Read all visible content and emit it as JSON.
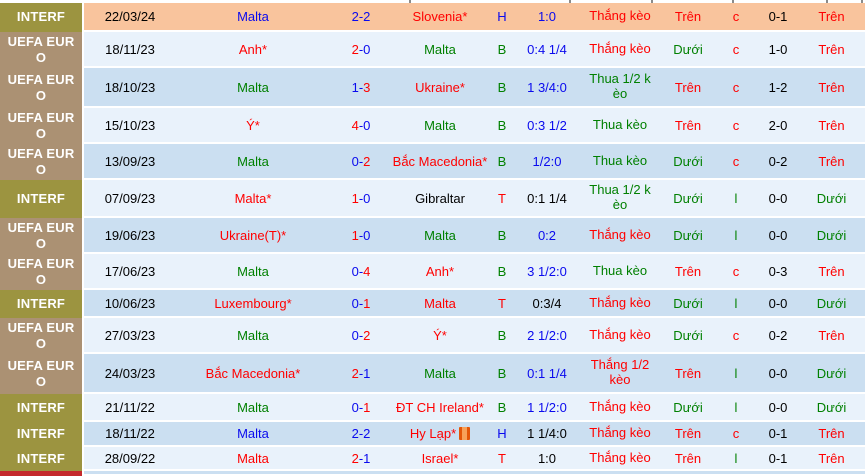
{
  "colors": {
    "red": "#ff0000",
    "green": "#008000",
    "blue": "#0a0aee",
    "black": "#000000",
    "comp_text": "#ffffff",
    "comp_interf_bg": "#9c9440",
    "comp_uefa_bg": "#ab9173",
    "comp_qual_bg": "#c4292c",
    "row_highlight_bg": "#f9c49d",
    "row_light_bg": "#e9f2fb",
    "row_dark_bg": "#cbdff1",
    "card_icon_color": "#e35507"
  },
  "score_separator": "-",
  "rows": [
    {
      "comp": "INTERF",
      "comp_style": "interf",
      "date": "22/03/24",
      "highlight": true,
      "home": {
        "name": "Malta",
        "color": "blue"
      },
      "score": {
        "h": "2",
        "hc": "blue",
        "a": "2",
        "ac": "blue"
      },
      "away": {
        "name": "Slovenia*",
        "color": "red",
        "card": false
      },
      "hbt": {
        "t": "H",
        "c": "blue"
      },
      "handicap": {
        "t": "1:0",
        "c": "blue"
      },
      "result": {
        "t": "Thắng kèo",
        "c": "red"
      },
      "ou": {
        "t": "Trên",
        "c": "red"
      },
      "oe": {
        "t": "c",
        "c": "red"
      },
      "ht": "0-1",
      "ht_ou": {
        "t": "Trên",
        "c": "red"
      }
    },
    {
      "comp": "UEFA EURO",
      "comp_style": "uefa",
      "date": "18/11/23",
      "highlight": false,
      "home": {
        "name": "Anh*",
        "color": "red"
      },
      "score": {
        "h": "2",
        "hc": "red",
        "a": "0",
        "ac": "blue"
      },
      "away": {
        "name": "Malta",
        "color": "green",
        "card": false
      },
      "hbt": {
        "t": "B",
        "c": "green"
      },
      "handicap": {
        "t": "0:4 1/4",
        "c": "blue"
      },
      "result": {
        "t": "Thắng kèo",
        "c": "red"
      },
      "ou": {
        "t": "Dưới",
        "c": "green"
      },
      "oe": {
        "t": "c",
        "c": "red"
      },
      "ht": "1-0",
      "ht_ou": {
        "t": "Trên",
        "c": "red"
      }
    },
    {
      "comp": "UEFA EURO",
      "comp_style": "uefa",
      "date": "18/10/23",
      "highlight": false,
      "home": {
        "name": "Malta",
        "color": "green"
      },
      "score": {
        "h": "1",
        "hc": "blue",
        "a": "3",
        "ac": "red"
      },
      "away": {
        "name": "Ukraine*",
        "color": "red",
        "card": false
      },
      "hbt": {
        "t": "B",
        "c": "green"
      },
      "handicap": {
        "t": "1 3/4:0",
        "c": "blue"
      },
      "result": {
        "t": "Thua 1/2 kèo",
        "c": "green"
      },
      "ou": {
        "t": "Trên",
        "c": "red"
      },
      "oe": {
        "t": "c",
        "c": "red"
      },
      "ht": "1-2",
      "ht_ou": {
        "t": "Trên",
        "c": "red"
      }
    },
    {
      "comp": "UEFA EURO",
      "comp_style": "uefa",
      "date": "15/10/23",
      "highlight": false,
      "home": {
        "name": "Ý*",
        "color": "red"
      },
      "score": {
        "h": "4",
        "hc": "red",
        "a": "0",
        "ac": "blue"
      },
      "away": {
        "name": "Malta",
        "color": "green",
        "card": false
      },
      "hbt": {
        "t": "B",
        "c": "green"
      },
      "handicap": {
        "t": "0:3 1/2",
        "c": "blue"
      },
      "result": {
        "t": "Thua kèo",
        "c": "green"
      },
      "ou": {
        "t": "Trên",
        "c": "red"
      },
      "oe": {
        "t": "c",
        "c": "red"
      },
      "ht": "2-0",
      "ht_ou": {
        "t": "Trên",
        "c": "red"
      }
    },
    {
      "comp": "UEFA EURO",
      "comp_style": "uefa",
      "date": "13/09/23",
      "highlight": false,
      "home": {
        "name": "Malta",
        "color": "green"
      },
      "score": {
        "h": "0",
        "hc": "blue",
        "a": "2",
        "ac": "red"
      },
      "away": {
        "name": "Bắc Macedonia*",
        "color": "red",
        "card": false
      },
      "hbt": {
        "t": "B",
        "c": "green"
      },
      "handicap": {
        "t": "1/2:0",
        "c": "blue"
      },
      "result": {
        "t": "Thua kèo",
        "c": "green"
      },
      "ou": {
        "t": "Dưới",
        "c": "green"
      },
      "oe": {
        "t": "c",
        "c": "red"
      },
      "ht": "0-2",
      "ht_ou": {
        "t": "Trên",
        "c": "red"
      }
    },
    {
      "comp": "INTERF",
      "comp_style": "interf",
      "date": "07/09/23",
      "highlight": false,
      "home": {
        "name": "Malta*",
        "color": "red"
      },
      "score": {
        "h": "1",
        "hc": "red",
        "a": "0",
        "ac": "blue"
      },
      "away": {
        "name": "Gibraltar",
        "color": "black",
        "card": false
      },
      "hbt": {
        "t": "T",
        "c": "red"
      },
      "handicap": {
        "t": "0:1 1/4",
        "c": "black"
      },
      "result": {
        "t": "Thua 1/2 kèo",
        "c": "green"
      },
      "ou": {
        "t": "Dưới",
        "c": "green"
      },
      "oe": {
        "t": "l",
        "c": "green"
      },
      "ht": "0-0",
      "ht_ou": {
        "t": "Dưới",
        "c": "green"
      }
    },
    {
      "comp": "UEFA EURO",
      "comp_style": "uefa",
      "date": "19/06/23",
      "highlight": false,
      "home": {
        "name": "Ukraine(T)*",
        "color": "red"
      },
      "score": {
        "h": "1",
        "hc": "red",
        "a": "0",
        "ac": "blue"
      },
      "away": {
        "name": "Malta",
        "color": "green",
        "card": false
      },
      "hbt": {
        "t": "B",
        "c": "green"
      },
      "handicap": {
        "t": "0:2",
        "c": "blue"
      },
      "result": {
        "t": "Thắng kèo",
        "c": "red"
      },
      "ou": {
        "t": "Dưới",
        "c": "green"
      },
      "oe": {
        "t": "l",
        "c": "green"
      },
      "ht": "0-0",
      "ht_ou": {
        "t": "Dưới",
        "c": "green"
      }
    },
    {
      "comp": "UEFA EURO",
      "comp_style": "uefa",
      "date": "17/06/23",
      "highlight": false,
      "home": {
        "name": "Malta",
        "color": "green"
      },
      "score": {
        "h": "0",
        "hc": "blue",
        "a": "4",
        "ac": "red"
      },
      "away": {
        "name": "Anh*",
        "color": "red",
        "card": false
      },
      "hbt": {
        "t": "B",
        "c": "green"
      },
      "handicap": {
        "t": "3 1/2:0",
        "c": "blue"
      },
      "result": {
        "t": "Thua kèo",
        "c": "green"
      },
      "ou": {
        "t": "Trên",
        "c": "red"
      },
      "oe": {
        "t": "c",
        "c": "red"
      },
      "ht": "0-3",
      "ht_ou": {
        "t": "Trên",
        "c": "red"
      }
    },
    {
      "comp": "INTERF",
      "comp_style": "interf",
      "date": "10/06/23",
      "highlight": false,
      "home": {
        "name": "Luxembourg*",
        "color": "red"
      },
      "score": {
        "h": "0",
        "hc": "blue",
        "a": "1",
        "ac": "red"
      },
      "away": {
        "name": "Malta",
        "color": "red",
        "card": false
      },
      "hbt": {
        "t": "T",
        "c": "red"
      },
      "handicap": {
        "t": "0:3/4",
        "c": "black"
      },
      "result": {
        "t": "Thắng kèo",
        "c": "red"
      },
      "ou": {
        "t": "Dưới",
        "c": "green"
      },
      "oe": {
        "t": "l",
        "c": "green"
      },
      "ht": "0-0",
      "ht_ou": {
        "t": "Dưới",
        "c": "green"
      }
    },
    {
      "comp": "UEFA EURO",
      "comp_style": "uefa",
      "date": "27/03/23",
      "highlight": false,
      "home": {
        "name": "Malta",
        "color": "green"
      },
      "score": {
        "h": "0",
        "hc": "blue",
        "a": "2",
        "ac": "red"
      },
      "away": {
        "name": "Ý*",
        "color": "red",
        "card": false
      },
      "hbt": {
        "t": "B",
        "c": "green"
      },
      "handicap": {
        "t": "2 1/2:0",
        "c": "blue"
      },
      "result": {
        "t": "Thắng kèo",
        "c": "red"
      },
      "ou": {
        "t": "Dưới",
        "c": "green"
      },
      "oe": {
        "t": "c",
        "c": "red"
      },
      "ht": "0-2",
      "ht_ou": {
        "t": "Trên",
        "c": "red"
      }
    },
    {
      "comp": "UEFA EURO",
      "comp_style": "uefa",
      "date": "24/03/23",
      "highlight": false,
      "home": {
        "name": "Bắc Macedonia*",
        "color": "red"
      },
      "score": {
        "h": "2",
        "hc": "red",
        "a": "1",
        "ac": "blue"
      },
      "away": {
        "name": "Malta",
        "color": "green",
        "card": false
      },
      "hbt": {
        "t": "B",
        "c": "green"
      },
      "handicap": {
        "t": "0:1 1/4",
        "c": "blue"
      },
      "result": {
        "t": "Thắng 1/2 kèo",
        "c": "red"
      },
      "ou": {
        "t": "Trên",
        "c": "red"
      },
      "oe": {
        "t": "l",
        "c": "green"
      },
      "ht": "0-0",
      "ht_ou": {
        "t": "Dưới",
        "c": "green"
      }
    },
    {
      "comp": "INTERF",
      "comp_style": "interf",
      "date": "21/11/22",
      "highlight": false,
      "home": {
        "name": "Malta",
        "color": "green"
      },
      "score": {
        "h": "0",
        "hc": "blue",
        "a": "1",
        "ac": "red"
      },
      "away": {
        "name": "ĐT CH Ireland*",
        "color": "red",
        "card": false
      },
      "hbt": {
        "t": "B",
        "c": "green"
      },
      "handicap": {
        "t": "1 1/2:0",
        "c": "blue"
      },
      "result": {
        "t": "Thắng kèo",
        "c": "red"
      },
      "ou": {
        "t": "Dưới",
        "c": "green"
      },
      "oe": {
        "t": "l",
        "c": "green"
      },
      "ht": "0-0",
      "ht_ou": {
        "t": "Dưới",
        "c": "green"
      }
    },
    {
      "comp": "INTERF",
      "comp_style": "interf",
      "date": "18/11/22",
      "highlight": false,
      "home": {
        "name": "Malta",
        "color": "blue"
      },
      "score": {
        "h": "2",
        "hc": "blue",
        "a": "2",
        "ac": "blue"
      },
      "away": {
        "name": "Hy Lạp*",
        "color": "red",
        "card": true
      },
      "hbt": {
        "t": "H",
        "c": "blue"
      },
      "handicap": {
        "t": "1 1/4:0",
        "c": "black"
      },
      "result": {
        "t": "Thắng kèo",
        "c": "red"
      },
      "ou": {
        "t": "Trên",
        "c": "red"
      },
      "oe": {
        "t": "c",
        "c": "red"
      },
      "ht": "0-1",
      "ht_ou": {
        "t": "Trên",
        "c": "red"
      }
    },
    {
      "comp": "INTERF",
      "comp_style": "interf",
      "date": "28/09/22",
      "highlight": false,
      "home": {
        "name": "Malta",
        "color": "red"
      },
      "score": {
        "h": "2",
        "hc": "red",
        "a": "1",
        "ac": "blue"
      },
      "away": {
        "name": "Israel*",
        "color": "red",
        "card": false
      },
      "hbt": {
        "t": "T",
        "c": "red"
      },
      "handicap": {
        "t": "1:0",
        "c": "black"
      },
      "result": {
        "t": "Thắng kèo",
        "c": "red"
      },
      "ou": {
        "t": "Trên",
        "c": "red"
      },
      "oe": {
        "t": "l",
        "c": "green"
      },
      "ht": "0-1",
      "ht_ou": {
        "t": "Trên",
        "c": "red"
      }
    }
  ],
  "partial_row": {
    "comp_style": "qual"
  }
}
